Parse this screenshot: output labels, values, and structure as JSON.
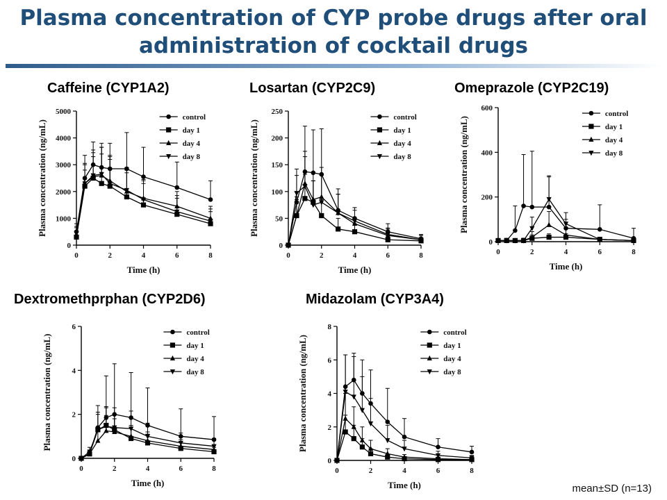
{
  "slide": {
    "title_line1": "Plasma concentration of CYP probe drugs after oral",
    "title_line2": "administration of cocktail drugs",
    "footnote": "mean±SD (n=13)"
  },
  "colors": {
    "title": "#1f4e79",
    "caffeine": "#e0201b",
    "losartan": "#2f5aa8",
    "omeprazole": "#2f5aa8",
    "dextromethorphan": "#7030a0",
    "midazolam": "#2e8b2e"
  },
  "chart_data": [
    {
      "type": "line",
      "panel_title": "Caffeine (CYP1A2)",
      "title_color": "#e0201b",
      "xlabel": "Time (h)",
      "ylabel": "Plasma concentration (ng/mL)",
      "xlim": [
        0,
        8
      ],
      "ylim": [
        0,
        5000
      ],
      "xticks": [
        0,
        2,
        4,
        6,
        8
      ],
      "yticks": [
        0,
        1000,
        2000,
        3000,
        4000,
        5000
      ],
      "legend_position": "top-right",
      "x": [
        0,
        0.5,
        1,
        1.5,
        2,
        3,
        4,
        6,
        8
      ],
      "series": [
        {
          "name": "control",
          "marker": "circle",
          "values": [
            500,
            2500,
            3000,
            2900,
            2850,
            2850,
            2550,
            2150,
            1700
          ],
          "err": [
            300,
            850,
            850,
            900,
            950,
            1350,
            1100,
            950,
            700
          ]
        },
        {
          "name": "day 1",
          "marker": "square",
          "values": [
            300,
            2200,
            2500,
            2300,
            2200,
            1800,
            1500,
            1150,
            800
          ],
          "err": [
            200,
            600,
            800,
            1100,
            1000,
            900,
            800,
            600,
            450
          ]
        },
        {
          "name": "day 4",
          "marker": "triangle-up",
          "values": [
            400,
            2300,
            2550,
            2600,
            2400,
            2000,
            1750,
            1450,
            1000
          ],
          "err": [
            250,
            700,
            900,
            1050,
            950,
            800,
            700,
            550,
            450
          ]
        },
        {
          "name": "day 8",
          "marker": "triangle-down",
          "values": [
            450,
            2300,
            2600,
            2650,
            2300,
            2050,
            1700,
            1250,
            900
          ],
          "err": [
            250,
            750,
            950,
            1000,
            1000,
            850,
            700,
            600,
            450
          ]
        }
      ]
    },
    {
      "type": "line",
      "panel_title": "Losartan (CYP2C9)",
      "title_color": "#2f5aa8",
      "xlabel": "Time (h)",
      "ylabel": "Plasma concentration (ng/mL)",
      "xlim": [
        0,
        8
      ],
      "ylim": [
        0,
        250
      ],
      "xticks": [
        0,
        2,
        4,
        6,
        8
      ],
      "yticks": [
        0,
        50,
        100,
        150,
        200,
        250
      ],
      "legend_position": "top-right",
      "x": [
        0,
        0.5,
        1,
        1.5,
        2,
        3,
        4,
        6,
        8
      ],
      "series": [
        {
          "name": "control",
          "marker": "circle",
          "values": [
            0,
            80,
            137,
            135,
            132,
            65,
            50,
            25,
            12
          ],
          "err": [
            0,
            50,
            85,
            80,
            85,
            40,
            20,
            15,
            8
          ]
        },
        {
          "name": "day 1",
          "marker": "square",
          "values": [
            0,
            55,
            87,
            80,
            55,
            30,
            25,
            10,
            8
          ],
          "err": [
            0,
            30,
            45,
            40,
            30,
            20,
            15,
            8,
            5
          ]
        },
        {
          "name": "day 4",
          "marker": "triangle-up",
          "values": [
            0,
            55,
            115,
            85,
            90,
            60,
            40,
            18,
            10
          ],
          "err": [
            0,
            35,
            60,
            50,
            55,
            35,
            25,
            12,
            8
          ]
        },
        {
          "name": "day 8",
          "marker": "triangle-down",
          "values": [
            0,
            97,
            110,
            75,
            80,
            60,
            45,
            20,
            10
          ],
          "err": [
            0,
            45,
            55,
            45,
            50,
            35,
            25,
            12,
            8
          ]
        }
      ]
    },
    {
      "type": "line",
      "panel_title": "Omeprazole (CYP2C19)",
      "title_color": "#2f5aa8",
      "xlabel": "Time (h)",
      "ylabel": "Plasma concentration (ng/mL)",
      "xlim": [
        0,
        8
      ],
      "ylim": [
        0,
        600
      ],
      "xticks": [
        0,
        2,
        4,
        6,
        8
      ],
      "yticks": [
        0,
        200,
        400,
        600
      ],
      "legend_position": "top-right",
      "x": [
        0,
        0.5,
        1,
        1.5,
        2,
        3,
        4,
        6,
        8
      ],
      "series": [
        {
          "name": "control",
          "marker": "circle",
          "values": [
            5,
            5,
            50,
            160,
            155,
            155,
            60,
            55,
            15
          ],
          "err": [
            0,
            10,
            110,
            230,
            250,
            140,
            40,
            110,
            45
          ]
        },
        {
          "name": "day 1",
          "marker": "square",
          "values": [
            5,
            5,
            5,
            5,
            15,
            20,
            20,
            10,
            5
          ],
          "err": [
            0,
            5,
            5,
            10,
            15,
            15,
            15,
            10,
            5
          ]
        },
        {
          "name": "day 4",
          "marker": "triangle-up",
          "values": [
            5,
            5,
            5,
            5,
            20,
            75,
            30,
            10,
            5
          ],
          "err": [
            0,
            5,
            5,
            10,
            25,
            60,
            30,
            10,
            5
          ]
        },
        {
          "name": "day 8",
          "marker": "triangle-down",
          "values": [
            5,
            5,
            5,
            5,
            60,
            190,
            80,
            10,
            5
          ],
          "err": [
            0,
            5,
            5,
            10,
            50,
            100,
            50,
            10,
            5
          ]
        }
      ]
    },
    {
      "type": "line",
      "panel_title": "Dextromethprphan (CYP2D6)",
      "title_color": "#7030a0",
      "xlabel": "Time (h)",
      "ylabel": "Plasma concentration (ng/mL)",
      "xlim": [
        0,
        8
      ],
      "ylim": [
        0,
        6
      ],
      "xticks": [
        0,
        2,
        4,
        6,
        8
      ],
      "yticks": [
        0,
        2,
        4,
        6
      ],
      "legend_position": "top-right",
      "x": [
        0,
        0.5,
        1,
        1.5,
        2,
        3,
        4,
        6,
        8
      ],
      "series": [
        {
          "name": "control",
          "marker": "circle",
          "values": [
            0,
            0.2,
            1.4,
            1.85,
            2.0,
            1.85,
            1.5,
            1.0,
            0.85
          ],
          "err": [
            0,
            0.15,
            1.0,
            1.9,
            2.3,
            2.05,
            1.7,
            1.25,
            1.05
          ]
        },
        {
          "name": "day 1",
          "marker": "square",
          "values": [
            0,
            0.2,
            1.3,
            1.5,
            1.3,
            0.9,
            0.7,
            0.45,
            0.3
          ],
          "err": [
            0,
            0.15,
            0.7,
            0.8,
            0.7,
            0.5,
            0.4,
            0.3,
            0.2
          ]
        },
        {
          "name": "day 4",
          "marker": "triangle-up",
          "values": [
            0,
            0.2,
            0.8,
            1.25,
            1.2,
            1.0,
            0.8,
            0.55,
            0.4
          ],
          "err": [
            0,
            0.15,
            0.5,
            0.7,
            0.6,
            0.5,
            0.4,
            0.3,
            0.2
          ]
        },
        {
          "name": "day 8",
          "marker": "triangle-down",
          "values": [
            0,
            0.3,
            1.3,
            1.45,
            1.4,
            1.35,
            1.0,
            0.7,
            0.55
          ],
          "err": [
            0,
            0.2,
            0.8,
            0.9,
            0.9,
            0.8,
            0.6,
            0.45,
            0.35
          ]
        }
      ]
    },
    {
      "type": "line",
      "panel_title": "Midazolam (CYP3A4)",
      "title_color": "#2e8b2e",
      "xlabel": "Time (h)",
      "ylabel": "Plasma concentration (ng/mL)",
      "xlim": [
        0,
        8
      ],
      "ylim": [
        0,
        8
      ],
      "xticks": [
        0,
        2,
        4,
        6,
        8
      ],
      "yticks": [
        0,
        2,
        4,
        6,
        8
      ],
      "legend_position": "top-right",
      "x": [
        0,
        0.5,
        1,
        1.5,
        2,
        3,
        4,
        6,
        8
      ],
      "series": [
        {
          "name": "control",
          "marker": "circle",
          "values": [
            0,
            4.4,
            4.8,
            4.0,
            3.4,
            2.3,
            1.4,
            0.8,
            0.5
          ],
          "err": [
            0,
            1.9,
            1.6,
            2.0,
            2.0,
            2.0,
            1.1,
            0.5,
            0.35
          ]
        },
        {
          "name": "day 1",
          "marker": "square",
          "values": [
            0,
            1.7,
            1.3,
            0.8,
            0.4,
            0.2,
            0.1,
            0.05,
            0.05
          ],
          "err": [
            0,
            1.0,
            0.8,
            0.5,
            0.3,
            0.15,
            0.1,
            0.05,
            0.05
          ]
        },
        {
          "name": "day 4",
          "marker": "triangle-up",
          "values": [
            0,
            2.5,
            2.0,
            1.2,
            0.7,
            0.4,
            0.2,
            0.1,
            0.05
          ],
          "err": [
            0,
            1.5,
            1.2,
            0.8,
            0.5,
            0.3,
            0.15,
            0.1,
            0.05
          ]
        },
        {
          "name": "day 8",
          "marker": "triangle-down",
          "values": [
            0,
            4.1,
            3.8,
            3.0,
            2.2,
            1.2,
            0.7,
            0.3,
            0.15
          ],
          "err": [
            0,
            2.2,
            2.4,
            2.0,
            1.5,
            0.9,
            0.5,
            0.25,
            0.15
          ]
        }
      ]
    }
  ]
}
